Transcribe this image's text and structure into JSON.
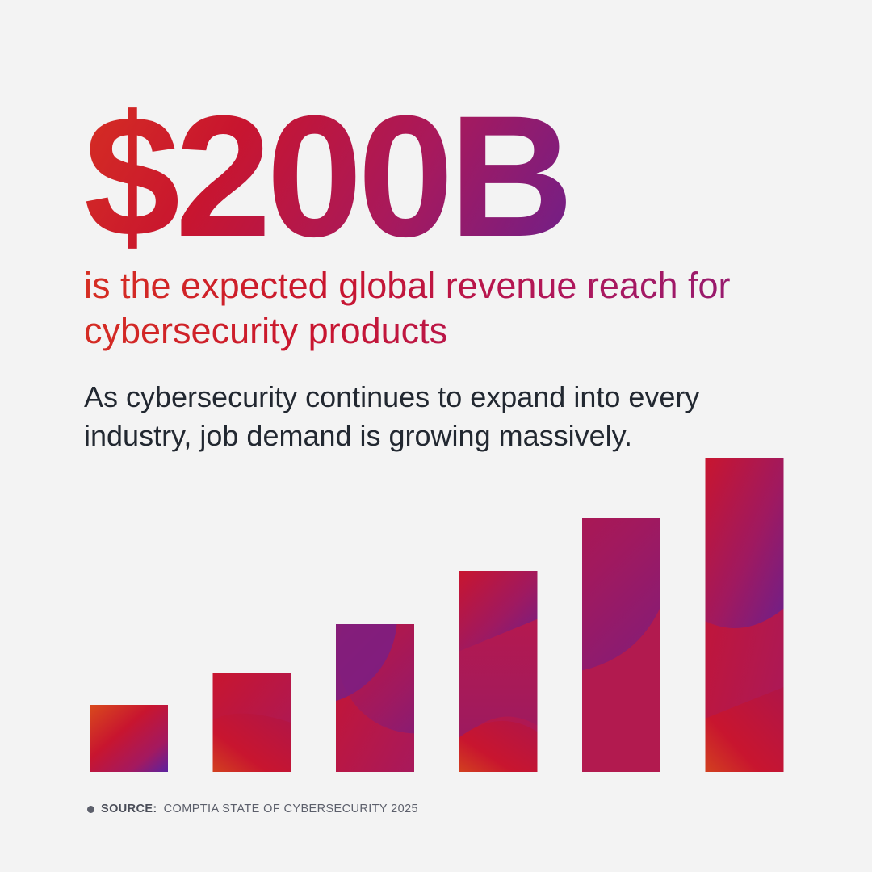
{
  "headline": "$200B",
  "subheadline": "is the expected global revenue reach for cybersecurity products",
  "body": "As cybersecurity continues to expand into every industry, job demand is growing massively.",
  "source": {
    "label": "SOURCE:",
    "text": "COMPTIA STATE OF CYBERSECURITY 2025"
  },
  "colors": {
    "red": "#c8152f",
    "magenta": "#a8195c",
    "purple": "#6e1f8a",
    "orange": "#d62f22",
    "background": "#f3f3f3",
    "body_text": "#222831"
  },
  "chart_data": {
    "type": "bar",
    "categories": [
      "",
      "",
      "",
      "",
      "",
      ""
    ],
    "values": [
      83,
      122,
      183,
      249,
      314,
      389
    ],
    "ylim": [
      0,
      400
    ],
    "grid": false,
    "axes_visible": false,
    "legend": "none"
  }
}
